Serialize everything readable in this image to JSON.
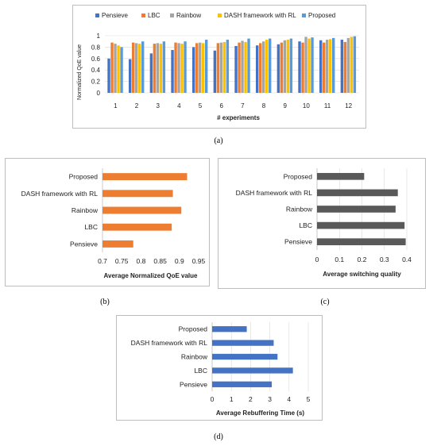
{
  "captions": {
    "a": "(a)",
    "b": "(b)",
    "c": "(c)",
    "d": "(d)"
  },
  "chart_data": [
    {
      "id": "a",
      "type": "bar",
      "xlabel": "# experiments",
      "ylabel": "Normalized QoE value",
      "ylim": [
        0,
        1
      ],
      "yticks": [
        "0",
        "0.2",
        "0.4",
        "0.6",
        "0.8",
        "1"
      ],
      "categories": [
        "1",
        "2",
        "3",
        "4",
        "5",
        "6",
        "7",
        "8",
        "9",
        "10",
        "11",
        "12"
      ],
      "legend_position": "top",
      "series": [
        {
          "name": "Pensieve",
          "color": "#4472c4",
          "values": [
            0.6,
            0.59,
            0.69,
            0.75,
            0.8,
            0.74,
            0.82,
            0.83,
            0.85,
            0.9,
            0.92,
            0.93
          ]
        },
        {
          "name": "LBC",
          "color": "#ed7d31",
          "values": [
            0.88,
            0.88,
            0.86,
            0.88,
            0.87,
            0.87,
            0.88,
            0.87,
            0.88,
            0.88,
            0.88,
            0.89
          ]
        },
        {
          "name": "Rainbow",
          "color": "#a5a5a5",
          "values": [
            0.86,
            0.87,
            0.87,
            0.87,
            0.88,
            0.88,
            0.91,
            0.9,
            0.92,
            0.98,
            0.93,
            0.96
          ]
        },
        {
          "name": "DASH framework with RL",
          "color": "#ffc000",
          "values": [
            0.83,
            0.86,
            0.86,
            0.86,
            0.87,
            0.89,
            0.89,
            0.93,
            0.93,
            0.95,
            0.94,
            0.98
          ]
        },
        {
          "name": "Proposed",
          "color": "#5b9bd5",
          "values": [
            0.8,
            0.9,
            0.9,
            0.9,
            0.93,
            0.93,
            0.95,
            0.95,
            0.95,
            0.97,
            0.96,
            0.99
          ]
        }
      ]
    },
    {
      "id": "b",
      "type": "bar",
      "orientation": "horizontal",
      "xlabel": "Average Normalized QoE value",
      "categories": [
        "Proposed",
        "DASH framework with RL",
        "Rainbow",
        "LBC",
        "Pensieve"
      ],
      "values": [
        0.92,
        0.883,
        0.905,
        0.88,
        0.78
      ],
      "xlim": [
        0.7,
        0.95
      ],
      "xticks": [
        "0.7",
        "0.75",
        "0.8",
        "0.85",
        "0.9",
        "0.95"
      ],
      "color": "#ed7d31",
      "grid": false
    },
    {
      "id": "c",
      "type": "bar",
      "orientation": "horizontal",
      "xlabel": "Average switching quality",
      "categories": [
        "Proposed",
        "DASH framework with RL",
        "Rainbow",
        "LBC",
        "Pensieve"
      ],
      "values": [
        0.21,
        0.36,
        0.35,
        0.39,
        0.395
      ],
      "xlim": [
        0,
        0.4
      ],
      "xticks": [
        "0",
        "0.1",
        "0.2",
        "0.3",
        "0.4"
      ],
      "color": "#595959",
      "grid": true
    },
    {
      "id": "d",
      "type": "bar",
      "orientation": "horizontal",
      "xlabel": "Average  Rebuffering Time (s)",
      "categories": [
        "Proposed",
        "DASH framework with RL",
        "Rainbow",
        "LBC",
        "Pensieve"
      ],
      "values": [
        1.8,
        3.2,
        3.4,
        4.2,
        3.1
      ],
      "xlim": [
        0,
        5
      ],
      "xticks": [
        "0",
        "1",
        "2",
        "3",
        "4",
        "5"
      ],
      "color": "#4472c4",
      "grid": true
    }
  ]
}
